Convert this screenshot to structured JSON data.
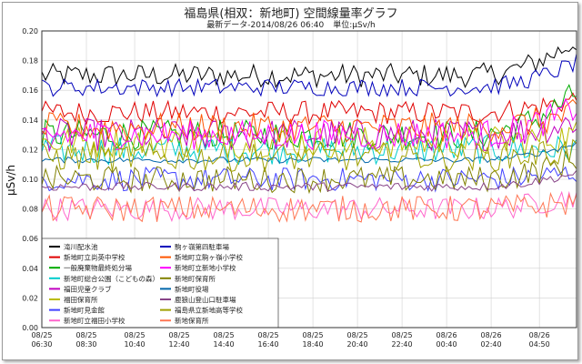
{
  "header": {
    "title": "福島県(相双：新地町) 空間線量率グラフ",
    "latest": "最新データ-2014/08/26 06:40",
    "unit": "単位:μSv/h"
  },
  "chart_data": {
    "type": "line",
    "ylabel": "μSv/h",
    "ylim": [
      0,
      0.2
    ],
    "yticks": [
      "0.00",
      "0.02",
      "0.04",
      "0.06",
      "0.08",
      "0.10",
      "0.12",
      "0.14",
      "0.16",
      "0.18",
      "0.20"
    ],
    "x_tick_labels": [
      [
        "08/25",
        "06:30"
      ],
      [
        "08/25",
        "08:30"
      ],
      [
        "08/25",
        "10:40"
      ],
      [
        "08/25",
        "12:40"
      ],
      [
        "08/25",
        "14:40"
      ],
      [
        "08/25",
        "16:40"
      ],
      [
        "08/25",
        "18:40"
      ],
      [
        "08/25",
        "20:40"
      ],
      [
        "08/25",
        "22:40"
      ],
      [
        "08/26",
        "00:40"
      ],
      [
        "08/26",
        "02:40"
      ],
      [
        "08/26",
        "04:50"
      ]
    ],
    "x_tick_index": [
      0,
      12,
      25,
      37,
      49,
      61,
      73,
      85,
      97,
      109,
      121,
      134
    ],
    "n_points": 145,
    "grid": true,
    "legend_placement": "bottom-left",
    "series": [
      {
        "name": "滝川配水池",
        "color": "#000000",
        "base": 0.17,
        "amp": 0.008,
        "end": 0.195
      },
      {
        "name": "新地町立尚英中学校",
        "color": "#e00000",
        "base": 0.145,
        "amp": 0.008,
        "end": 0.155
      },
      {
        "name": "一般廃棄物最終処分場",
        "color": "#00aa00",
        "base": 0.13,
        "amp": 0.01,
        "end": 0.16
      },
      {
        "name": "新地町総合公園（こどもの森）",
        "color": "#00cccc",
        "base": 0.12,
        "amp": 0.01,
        "end": 0.12
      },
      {
        "name": "福田児童クラブ",
        "color": "#c000c0",
        "base": 0.13,
        "amp": 0.011,
        "end": 0.14
      },
      {
        "name": "福田保育所",
        "color": "#bbbb00",
        "base": 0.125,
        "amp": 0.011,
        "end": 0.13
      },
      {
        "name": "新地町見金館",
        "color": "#4040ff",
        "base": 0.1,
        "amp": 0.008,
        "end": 0.105
      },
      {
        "name": "新地町立福田小学校",
        "color": "#ff66cc",
        "base": 0.08,
        "amp": 0.008,
        "end": 0.09
      },
      {
        "name": "駒ヶ嶺第四駐車場",
        "color": "#0000bb",
        "base": 0.162,
        "amp": 0.006,
        "end": 0.18
      },
      {
        "name": "新地町立駒ヶ嶺小学校",
        "color": "#ff5500",
        "base": 0.135,
        "amp": 0.01,
        "end": 0.145
      },
      {
        "name": "新地町立新地小学校",
        "color": "#ff00ff",
        "base": 0.13,
        "amp": 0.01,
        "end": 0.15
      },
      {
        "name": "新地町保育所",
        "color": "#808000",
        "base": 0.1,
        "amp": 0.009,
        "end": 0.115
      },
      {
        "name": "新地町役場",
        "color": "#0066aa",
        "base": 0.113,
        "amp": 0.002,
        "end": 0.125
      },
      {
        "name": "鹿狼山登山口駐車場",
        "color": "#884488",
        "base": 0.095,
        "amp": 0.003,
        "end": 0.105
      },
      {
        "name": "福島県立新地高等学校",
        "color": "#a0a000",
        "base": 0.115,
        "amp": 0.01,
        "end": 0.12
      },
      {
        "name": "新地保育所",
        "color": "#ff7755",
        "base": 0.08,
        "amp": 0.009,
        "end": 0.085
      }
    ]
  }
}
